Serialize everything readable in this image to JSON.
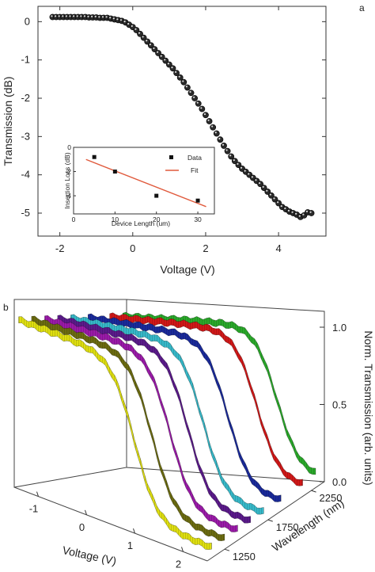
{
  "panels": {
    "a": "a",
    "b": "b"
  },
  "chart_data": [
    {
      "type": "scatter",
      "xlabel": "Voltage (V)",
      "ylabel": "Transmission (dB)",
      "xlim": [
        -2.6,
        5.3
      ],
      "ylim": [
        -5.6,
        0.4
      ],
      "xticks": [
        -2,
        0,
        2,
        4
      ],
      "yticks": [
        0,
        -1,
        -2,
        -3,
        -4,
        -5
      ],
      "xtick_labels": [
        "-2",
        "0",
        "2",
        "4"
      ],
      "ytick_labels": [
        "0",
        "-1",
        "-2",
        "-3",
        "-4",
        "-5"
      ],
      "series": [
        {
          "x": [
            -2.2,
            -2.1,
            -2.0,
            -1.9,
            -1.8,
            -1.7,
            -1.6,
            -1.5,
            -1.4,
            -1.3,
            -1.2,
            -1.1,
            -1.0,
            -0.9,
            -0.8,
            -0.7,
            -0.6,
            -0.5,
            -0.4,
            -0.3,
            -0.2,
            -0.1,
            0.0,
            0.1,
            0.2,
            0.3,
            0.4,
            0.5,
            0.6,
            0.7,
            0.8,
            0.9,
            1.0,
            1.1,
            1.2,
            1.3,
            1.4,
            1.5,
            1.6,
            1.7,
            1.8,
            1.9,
            2.0,
            2.1,
            2.2,
            2.3,
            2.4,
            2.5,
            2.6,
            2.7,
            2.8,
            2.9,
            3.0,
            3.1,
            3.2,
            3.3,
            3.4,
            3.5,
            3.6,
            3.7,
            3.8,
            3.9,
            4.0,
            4.1,
            4.2,
            4.3,
            4.4,
            4.5,
            4.6,
            4.7,
            4.8,
            4.9
          ],
          "y": [
            0.12,
            0.12,
            0.12,
            0.12,
            0.12,
            0.12,
            0.12,
            0.12,
            0.12,
            0.12,
            0.11,
            0.11,
            0.11,
            0.1,
            0.1,
            0.1,
            0.08,
            0.06,
            0.04,
            0.02,
            -0.02,
            -0.08,
            -0.14,
            -0.22,
            -0.32,
            -0.42,
            -0.52,
            -0.62,
            -0.72,
            -0.82,
            -0.92,
            -1.02,
            -1.12,
            -1.22,
            -1.34,
            -1.46,
            -1.58,
            -1.72,
            -1.86,
            -2.0,
            -2.14,
            -2.28,
            -2.44,
            -2.6,
            -2.76,
            -2.92,
            -3.08,
            -3.24,
            -3.38,
            -3.52,
            -3.64,
            -3.74,
            -3.84,
            -3.92,
            -4.0,
            -4.08,
            -4.16,
            -4.24,
            -4.34,
            -4.44,
            -4.54,
            -4.64,
            -4.74,
            -4.84,
            -4.9,
            -4.96,
            -5.0,
            -5.04,
            -5.1,
            -5.06,
            -4.98,
            -5.0
          ]
        }
      ],
      "inset": {
        "type": "scatter",
        "xlabel": "Device Length (um)",
        "ylabel": "Insertion Loss (dB)",
        "xlim": [
          0,
          34
        ],
        "ylim": [
          -5.5,
          0
        ],
        "xticks": [
          0,
          10,
          20,
          30
        ],
        "yticks": [
          0,
          -2,
          -4
        ],
        "xtick_labels": [
          "0",
          "10",
          "20",
          "30"
        ],
        "ytick_labels": [
          "0",
          "-2",
          "-4"
        ],
        "legend": [
          "Data",
          "Fit"
        ],
        "legend_position": "top-right",
        "data": {
          "x": [
            5,
            10,
            20,
            30
          ],
          "y": [
            -0.8,
            -2.0,
            -4.0,
            -4.4
          ]
        },
        "fit": {
          "x": [
            3,
            32
          ],
          "y": [
            -1.0,
            -4.9
          ]
        },
        "colors": {
          "data": "#111111",
          "fit": "#e05a3c"
        }
      }
    },
    {
      "type": "line",
      "title": "",
      "xlabel": "Voltage (V)",
      "ylabel": "Wavelength (nm)",
      "zlabel": "Norm. Transmission (arb. units)",
      "xticks": [
        -1,
        0,
        1,
        2
      ],
      "xtick_labels": [
        "-1",
        "0",
        "1",
        "2"
      ],
      "yticks": [
        1250,
        1750,
        2250
      ],
      "ytick_labels": [
        "1250",
        "1750",
        "2250"
      ],
      "zticks": [
        0.0,
        0.5,
        1.0
      ],
      "ztick_labels": [
        "0.0",
        "0.5",
        "1.0"
      ],
      "series": [
        {
          "color": "#dede10",
          "wavelength": 1100,
          "halfpoint_v": 0.9
        },
        {
          "color": "#6b6b10",
          "wavelength": 1250,
          "halfpoint_v": 1.0
        },
        {
          "color": "#9a1aa8",
          "wavelength": 1400,
          "halfpoint_v": 1.1
        },
        {
          "color": "#5a1a8a",
          "wavelength": 1550,
          "halfpoint_v": 1.2
        },
        {
          "color": "#36b8c8",
          "wavelength": 1700,
          "halfpoint_v": 1.25
        },
        {
          "color": "#1a2a9a",
          "wavelength": 1900,
          "halfpoint_v": 1.4
        },
        {
          "color": "#d01818",
          "wavelength": 2150,
          "halfpoint_v": 1.55
        },
        {
          "color": "#2aa82a",
          "wavelength": 2300,
          "halfpoint_v": 1.7
        }
      ]
    }
  ]
}
